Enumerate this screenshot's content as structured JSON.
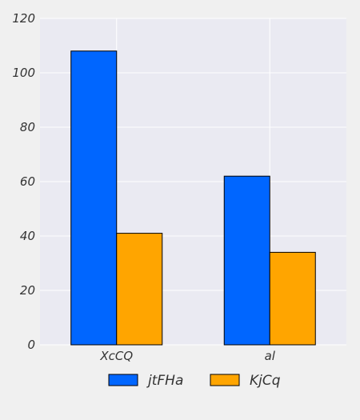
{
  "chart_data": {
    "type": "bar",
    "categories": [
      "XcCQ",
      "al"
    ],
    "series": [
      {
        "name": "jtFHa",
        "values": [
          108,
          62
        ],
        "color": "#0066ff"
      },
      {
        "name": "KjCq",
        "values": [
          41,
          34
        ],
        "color": "#ffa500"
      }
    ],
    "ylim": [
      0,
      120
    ],
    "yticks": [
      0,
      20,
      40,
      60,
      80,
      100,
      120
    ],
    "grid": true,
    "legend_position": "bottom",
    "plot_background": "#eaeaf2",
    "grid_color": "#ffffff"
  }
}
